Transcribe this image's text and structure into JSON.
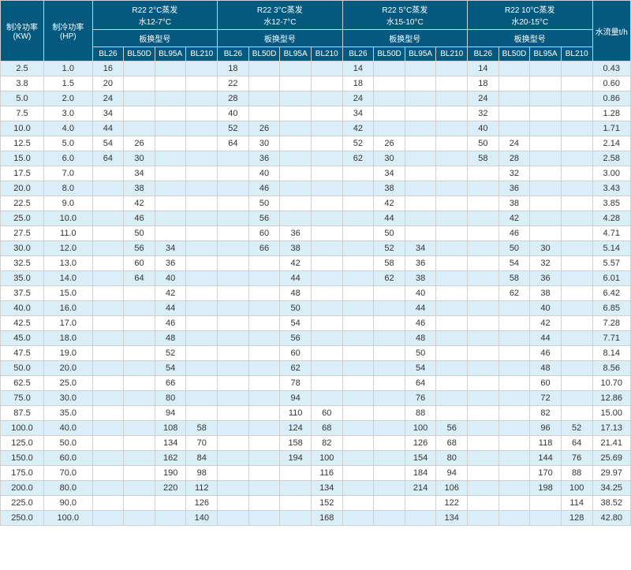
{
  "header": {
    "kw": "制冷功率(KW)",
    "hp": "制冷功率(HP)",
    "groups": [
      {
        "title": "R22 2°C蒸发",
        "sub": "水12-7°C",
        "model": "板换型号"
      },
      {
        "title": "R22 3°C蒸发",
        "sub": "水12-7°C",
        "model": "板换型号"
      },
      {
        "title": "R22 5°C蒸发",
        "sub": "水15-10°C",
        "model": "板换型号"
      },
      {
        "title": "R22 10°C蒸发",
        "sub": "水20-15°C",
        "model": "板换型号"
      }
    ],
    "bl": [
      "BL26",
      "BL50D",
      "BL95A",
      "BL210"
    ],
    "flow": "水流量t/h"
  },
  "style": {
    "header_bg": "#05597f",
    "header_fg": "#ffffff",
    "row_odd_bg": "#d9eef7",
    "row_even_bg": "#ffffff",
    "border_color": "#d0d0d0",
    "font_size_body": 11,
    "font_size_header": 10
  },
  "rows": [
    {
      "kw": "2.5",
      "hp": "1.0",
      "g": [
        [
          "16",
          "",
          "",
          ""
        ],
        [
          "18",
          "",
          "",
          ""
        ],
        [
          "14",
          "",
          "",
          ""
        ],
        [
          "14",
          "",
          "",
          ""
        ]
      ],
      "flow": "0.43"
    },
    {
      "kw": "3.8",
      "hp": "1.5",
      "g": [
        [
          "20",
          "",
          "",
          ""
        ],
        [
          "22",
          "",
          "",
          ""
        ],
        [
          "18",
          "",
          "",
          ""
        ],
        [
          "18",
          "",
          "",
          ""
        ]
      ],
      "flow": "0.60"
    },
    {
      "kw": "5.0",
      "hp": "2.0",
      "g": [
        [
          "24",
          "",
          "",
          ""
        ],
        [
          "28",
          "",
          "",
          ""
        ],
        [
          "24",
          "",
          "",
          ""
        ],
        [
          "24",
          "",
          "",
          ""
        ]
      ],
      "flow": "0.86"
    },
    {
      "kw": "7.5",
      "hp": "3.0",
      "g": [
        [
          "34",
          "",
          "",
          ""
        ],
        [
          "40",
          "",
          "",
          ""
        ],
        [
          "34",
          "",
          "",
          ""
        ],
        [
          "32",
          "",
          "",
          ""
        ]
      ],
      "flow": "1.28"
    },
    {
      "kw": "10.0",
      "hp": "4.0",
      "g": [
        [
          "44",
          "",
          "",
          ""
        ],
        [
          "52",
          "26",
          "",
          ""
        ],
        [
          "42",
          "",
          "",
          ""
        ],
        [
          "40",
          "",
          "",
          ""
        ]
      ],
      "flow": "1.71"
    },
    {
      "kw": "12.5",
      "hp": "5.0",
      "g": [
        [
          "54",
          "26",
          "",
          ""
        ],
        [
          "64",
          "30",
          "",
          ""
        ],
        [
          "52",
          "26",
          "",
          ""
        ],
        [
          "50",
          "24",
          "",
          ""
        ]
      ],
      "flow": "2.14"
    },
    {
      "kw": "15.0",
      "hp": "6.0",
      "g": [
        [
          "64",
          "30",
          "",
          ""
        ],
        [
          "",
          "36",
          "",
          ""
        ],
        [
          "62",
          "30",
          "",
          ""
        ],
        [
          "58",
          "28",
          "",
          ""
        ]
      ],
      "flow": "2.58"
    },
    {
      "kw": "17.5",
      "hp": "7.0",
      "g": [
        [
          "",
          "34",
          "",
          ""
        ],
        [
          "",
          "40",
          "",
          ""
        ],
        [
          "",
          "34",
          "",
          ""
        ],
        [
          "",
          "32",
          "",
          ""
        ]
      ],
      "flow": "3.00"
    },
    {
      "kw": "20.0",
      "hp": "8.0",
      "g": [
        [
          "",
          "38",
          "",
          ""
        ],
        [
          "",
          "46",
          "",
          ""
        ],
        [
          "",
          "38",
          "",
          ""
        ],
        [
          "",
          "36",
          "",
          ""
        ]
      ],
      "flow": "3.43"
    },
    {
      "kw": "22.5",
      "hp": "9.0",
      "g": [
        [
          "",
          "42",
          "",
          ""
        ],
        [
          "",
          "50",
          "",
          ""
        ],
        [
          "",
          "42",
          "",
          ""
        ],
        [
          "",
          "38",
          "",
          ""
        ]
      ],
      "flow": "3.85"
    },
    {
      "kw": "25.0",
      "hp": "10.0",
      "g": [
        [
          "",
          "46",
          "",
          ""
        ],
        [
          "",
          "56",
          "",
          ""
        ],
        [
          "",
          "44",
          "",
          ""
        ],
        [
          "",
          "42",
          "",
          ""
        ]
      ],
      "flow": "4.28"
    },
    {
      "kw": "27.5",
      "hp": "11.0",
      "g": [
        [
          "",
          "50",
          "",
          ""
        ],
        [
          "",
          "60",
          "36",
          ""
        ],
        [
          "",
          "50",
          "",
          ""
        ],
        [
          "",
          "46",
          "",
          ""
        ]
      ],
      "flow": "4.71"
    },
    {
      "kw": "30.0",
      "hp": "12.0",
      "g": [
        [
          "",
          "56",
          "34",
          ""
        ],
        [
          "",
          "66",
          "38",
          ""
        ],
        [
          "",
          "52",
          "34",
          ""
        ],
        [
          "",
          "50",
          "30",
          ""
        ]
      ],
      "flow": "5.14"
    },
    {
      "kw": "32.5",
      "hp": "13.0",
      "g": [
        [
          "",
          "60",
          "36",
          ""
        ],
        [
          "",
          "",
          "42",
          ""
        ],
        [
          "",
          "58",
          "36",
          ""
        ],
        [
          "",
          "54",
          "32",
          ""
        ]
      ],
      "flow": "5.57"
    },
    {
      "kw": "35.0",
      "hp": "14.0",
      "g": [
        [
          "",
          "64",
          "40",
          ""
        ],
        [
          "",
          "",
          "44",
          ""
        ],
        [
          "",
          "62",
          "38",
          ""
        ],
        [
          "",
          "58",
          "36",
          ""
        ]
      ],
      "flow": "6.01"
    },
    {
      "kw": "37.5",
      "hp": "15.0",
      "g": [
        [
          "",
          "",
          "42",
          ""
        ],
        [
          "",
          "",
          "48",
          ""
        ],
        [
          "",
          "",
          "40",
          ""
        ],
        [
          "",
          "62",
          "38",
          ""
        ]
      ],
      "flow": "6.42"
    },
    {
      "kw": "40.0",
      "hp": "16.0",
      "g": [
        [
          "",
          "",
          "44",
          ""
        ],
        [
          "",
          "",
          "50",
          ""
        ],
        [
          "",
          "",
          "44",
          ""
        ],
        [
          "",
          "",
          "40",
          ""
        ]
      ],
      "flow": "6.85"
    },
    {
      "kw": "42.5",
      "hp": "17.0",
      "g": [
        [
          "",
          "",
          "46",
          ""
        ],
        [
          "",
          "",
          "54",
          ""
        ],
        [
          "",
          "",
          "46",
          ""
        ],
        [
          "",
          "",
          "42",
          ""
        ]
      ],
      "flow": "7.28"
    },
    {
      "kw": "45.0",
      "hp": "18.0",
      "g": [
        [
          "",
          "",
          "48",
          ""
        ],
        [
          "",
          "",
          "56",
          ""
        ],
        [
          "",
          "",
          "48",
          ""
        ],
        [
          "",
          "",
          "44",
          ""
        ]
      ],
      "flow": "7.71"
    },
    {
      "kw": "47.5",
      "hp": "19.0",
      "g": [
        [
          "",
          "",
          "52",
          ""
        ],
        [
          "",
          "",
          "60",
          ""
        ],
        [
          "",
          "",
          "50",
          ""
        ],
        [
          "",
          "",
          "46",
          ""
        ]
      ],
      "flow": "8.14"
    },
    {
      "kw": "50.0",
      "hp": "20.0",
      "g": [
        [
          "",
          "",
          "54",
          ""
        ],
        [
          "",
          "",
          "62",
          ""
        ],
        [
          "",
          "",
          "54",
          ""
        ],
        [
          "",
          "",
          "48",
          ""
        ]
      ],
      "flow": "8.56"
    },
    {
      "kw": "62.5",
      "hp": "25.0",
      "g": [
        [
          "",
          "",
          "66",
          ""
        ],
        [
          "",
          "",
          "78",
          ""
        ],
        [
          "",
          "",
          "64",
          ""
        ],
        [
          "",
          "",
          "60",
          ""
        ]
      ],
      "flow": "10.70"
    },
    {
      "kw": "75.0",
      "hp": "30.0",
      "g": [
        [
          "",
          "",
          "80",
          ""
        ],
        [
          "",
          "",
          "94",
          ""
        ],
        [
          "",
          "",
          "76",
          ""
        ],
        [
          "",
          "",
          "72",
          ""
        ]
      ],
      "flow": "12.86"
    },
    {
      "kw": "87.5",
      "hp": "35.0",
      "g": [
        [
          "",
          "",
          "94",
          ""
        ],
        [
          "",
          "",
          "110",
          "60"
        ],
        [
          "",
          "",
          "88",
          ""
        ],
        [
          "",
          "",
          "82",
          ""
        ]
      ],
      "flow": "15.00"
    },
    {
      "kw": "100.0",
      "hp": "40.0",
      "g": [
        [
          "",
          "",
          "108",
          "58"
        ],
        [
          "",
          "",
          "124",
          "68"
        ],
        [
          "",
          "",
          "100",
          "56"
        ],
        [
          "",
          "",
          "96",
          "52"
        ]
      ],
      "flow": "17.13"
    },
    {
      "kw": "125.0",
      "hp": "50.0",
      "g": [
        [
          "",
          "",
          "134",
          "70"
        ],
        [
          "",
          "",
          "158",
          "82"
        ],
        [
          "",
          "",
          "126",
          "68"
        ],
        [
          "",
          "",
          "118",
          "64"
        ]
      ],
      "flow": "21.41"
    },
    {
      "kw": "150.0",
      "hp": "60.0",
      "g": [
        [
          "",
          "",
          "162",
          "84"
        ],
        [
          "",
          "",
          "194",
          "100"
        ],
        [
          "",
          "",
          "154",
          "80"
        ],
        [
          "",
          "",
          "144",
          "76"
        ]
      ],
      "flow": "25.69"
    },
    {
      "kw": "175.0",
      "hp": "70.0",
      "g": [
        [
          "",
          "",
          "190",
          "98"
        ],
        [
          "",
          "",
          "",
          "116"
        ],
        [
          "",
          "",
          "184",
          "94"
        ],
        [
          "",
          "",
          "170",
          "88"
        ]
      ],
      "flow": "29.97"
    },
    {
      "kw": "200.0",
      "hp": "80.0",
      "g": [
        [
          "",
          "",
          "220",
          "112"
        ],
        [
          "",
          "",
          "",
          "134"
        ],
        [
          "",
          "",
          "214",
          "106"
        ],
        [
          "",
          "",
          "198",
          "100"
        ]
      ],
      "flow": "34.25"
    },
    {
      "kw": "225.0",
      "hp": "90.0",
      "g": [
        [
          "",
          "",
          "",
          "126"
        ],
        [
          "",
          "",
          "",
          "152"
        ],
        [
          "",
          "",
          "",
          "122"
        ],
        [
          "",
          "",
          "",
          "114"
        ]
      ],
      "flow": "38.52"
    },
    {
      "kw": "250.0",
      "hp": "100.0",
      "g": [
        [
          "",
          "",
          "",
          "140"
        ],
        [
          "",
          "",
          "",
          "168"
        ],
        [
          "",
          "",
          "",
          "134"
        ],
        [
          "",
          "",
          "",
          "128"
        ]
      ],
      "flow": "42.80"
    }
  ]
}
